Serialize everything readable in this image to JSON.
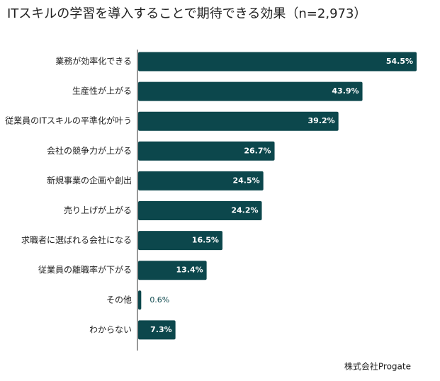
{
  "chart_data": {
    "type": "bar",
    "orientation": "horizontal",
    "title": "ITスキルの学習を導入することで期待できる効果（n=2,973）",
    "categories": [
      "業務が効率化できる",
      "生産性が上がる",
      "従業員のITスキルの平準化が叶う",
      "会社の競争力が上がる",
      "新規事業の企画や創出",
      "売り上げが上がる",
      "求職者に選ばれる会社になる",
      "従業員の離職率が下がる",
      "その他",
      "わからない"
    ],
    "values": [
      54.5,
      43.9,
      39.2,
      26.7,
      24.5,
      24.2,
      16.5,
      13.4,
      0.6,
      7.3
    ],
    "value_labels": [
      "54.5%",
      "43.9%",
      "39.2%",
      "26.7%",
      "24.5%",
      "24.2%",
      "16.5%",
      "13.4%",
      "0.6%",
      "7.3%"
    ],
    "color": "#0c474c",
    "source": "株式会社Progate"
  }
}
